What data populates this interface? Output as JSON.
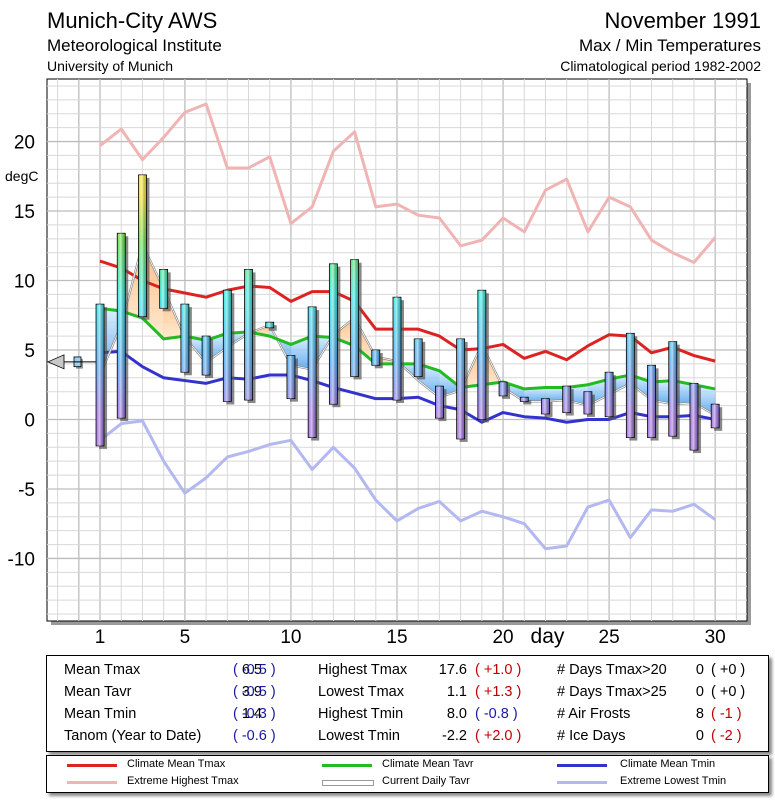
{
  "header": {
    "station": "Munich-City AWS",
    "institute": "Meteorological Institute",
    "university": "University of Munich",
    "month": "November 1991",
    "subtitle": "Max / Min Temperatures",
    "period": "Climatological period 1982-2002"
  },
  "chart_data": {
    "type": "line",
    "ylabel": "degC",
    "xlabel": "day",
    "ylim": [
      -14.5,
      24.5
    ],
    "xlim": [
      -1.5,
      31.5
    ],
    "y_ticks": [
      20,
      15,
      10,
      5,
      0,
      -5,
      -10
    ],
    "x_ticks": [
      1,
      5,
      10,
      15,
      20,
      25,
      30
    ],
    "x": [
      1,
      2,
      3,
      4,
      5,
      6,
      7,
      8,
      9,
      10,
      11,
      12,
      13,
      14,
      15,
      16,
      17,
      18,
      19,
      20,
      21,
      22,
      23,
      24,
      25,
      26,
      27,
      28,
      29,
      30
    ],
    "series": [
      {
        "name": "Climate Mean Tmax",
        "color": "#dd2222",
        "values": [
          11.4,
          10.9,
          10.0,
          9.4,
          9.1,
          8.8,
          9.3,
          9.6,
          9.5,
          8.5,
          9.2,
          9.2,
          8.5,
          6.5,
          6.5,
          6.5,
          6.0,
          5.0,
          5.1,
          5.4,
          4.4,
          4.9,
          4.3,
          5.3,
          6.1,
          6.0,
          4.8,
          5.2,
          4.6,
          4.2
        ]
      },
      {
        "name": "Climate Mean Tavr",
        "color": "#22bb22",
        "values": [
          8.0,
          7.8,
          7.3,
          5.8,
          6.0,
          5.7,
          6.2,
          6.3,
          6.0,
          5.4,
          6.0,
          5.9,
          5.3,
          4.0,
          4.0,
          4.0,
          3.5,
          2.3,
          2.5,
          2.7,
          2.2,
          2.3,
          2.3,
          2.5,
          2.9,
          3.2,
          2.7,
          2.8,
          2.5,
          2.2
        ]
      },
      {
        "name": "Climate Mean Tmin",
        "color": "#3333cc",
        "values": [
          4.8,
          4.9,
          3.8,
          3.0,
          2.8,
          2.6,
          3.0,
          2.9,
          3.2,
          3.2,
          2.8,
          2.3,
          1.9,
          1.5,
          1.5,
          1.6,
          1.0,
          0.7,
          -0.2,
          0.5,
          0.2,
          0.1,
          -0.2,
          0.0,
          0.0,
          0.5,
          0.2,
          0.2,
          0.3,
          0.0
        ]
      },
      {
        "name": "Extreme Highest Tmax",
        "color": "#f0b4b4",
        "values": [
          19.7,
          20.9,
          18.7,
          20.3,
          22.1,
          22.7,
          18.1,
          18.1,
          18.9,
          14.1,
          15.3,
          19.3,
          20.7,
          15.3,
          15.5,
          14.7,
          14.5,
          12.5,
          12.9,
          14.5,
          13.5,
          16.5,
          17.3,
          13.5,
          16.0,
          15.3,
          12.9,
          12.0,
          11.3,
          13.1
        ]
      },
      {
        "name": "Extreme Lowest Tmin",
        "color": "#b4b8f0",
        "values": [
          -1.5,
          -0.3,
          -0.1,
          -3.0,
          -5.3,
          -4.2,
          -2.7,
          -2.3,
          -1.8,
          -1.5,
          -3.6,
          -2.0,
          -3.5,
          -5.8,
          -7.3,
          -6.4,
          -5.9,
          -7.3,
          -6.6,
          -7.0,
          -7.5,
          -9.3,
          -9.1,
          -6.3,
          -5.8,
          -8.5,
          -6.5,
          -6.6,
          -6.1,
          -7.2
        ]
      },
      {
        "name": "Current Daily Tavr",
        "color": "#999999",
        "values": [
          3.2,
          6.8,
          12.6,
          9.4,
          5.9,
          4.1,
          5.2,
          6.2,
          6.8,
          3.9,
          3.6,
          6.1,
          7.3,
          4.5,
          4.2,
          2.8,
          1.6,
          2.1,
          5.4,
          2.3,
          1.3,
          1.3,
          1.4,
          1.0,
          1.8,
          2.6,
          1.4,
          1.1,
          1.2,
          0.3
        ]
      }
    ],
    "daily_tmax": [
      8.3,
      13.4,
      17.6,
      10.8,
      8.3,
      6.0,
      9.3,
      10.8,
      7.0,
      4.6,
      8.1,
      11.2,
      11.5,
      5.0,
      8.8,
      5.8,
      2.4,
      5.8,
      9.3,
      2.7,
      1.6,
      1.5,
      2.4,
      2.0,
      3.4,
      6.2,
      3.9,
      5.6,
      2.6,
      1.1
    ],
    "daily_tmin": [
      -1.9,
      0.1,
      7.4,
      8.0,
      3.4,
      3.2,
      1.3,
      1.4,
      6.6,
      1.5,
      -1.3,
      1.1,
      3.1,
      3.9,
      1.4,
      3.1,
      0.1,
      -1.4,
      0.0,
      1.7,
      1.3,
      0.4,
      0.5,
      0.4,
      0.2,
      -1.3,
      -1.3,
      -1.2,
      -2.2,
      -0.6
    ],
    "climate_period_marker": {
      "tmax": 4.5,
      "tmin": 3.8
    }
  },
  "stats": {
    "row1": {
      "a_label": "Mean Tmax",
      "a_val": "6.5",
      "a_dev": "( -0.5 )",
      "b_label": "Highest Tmax",
      "b_val": "17.6",
      "b_dev": "( +1.0 )",
      "c_label": "# Days Tmax>20",
      "c_val": "0",
      "c_dev": "( +0 )"
    },
    "row2": {
      "a_label": "Mean Tavr",
      "a_val": "3.9",
      "a_dev": "( -0.5 )",
      "b_label": "Lowest Tmax",
      "b_val": "1.1",
      "b_dev": "( +1.3 )",
      "c_label": "# Days Tmax>25",
      "c_val": "0",
      "c_dev": "( +0 )"
    },
    "row3": {
      "a_label": "Mean Tmin",
      "a_val": "1.4",
      "a_dev": "( -0.3 )",
      "b_label": "Highest Tmin",
      "b_val": "8.0",
      "b_dev": "( -0.8 )",
      "c_label": "# Air Frosts",
      "c_val": "8",
      "c_dev": "( -1 )"
    },
    "row4": {
      "a_label": "Tanom (Year to Date)",
      "a_dev": "( -0.6 )",
      "b_label": "Lowest Tmin",
      "b_val": "-2.2",
      "b_dev": "( +2.0 )",
      "c_label": "# Ice Days",
      "c_val": "0",
      "c_dev": "( -2 )"
    }
  },
  "legend": {
    "clim_tmax": "Climate Mean Tmax",
    "clim_tavr": "Climate Mean Tavr",
    "clim_tmin": "Climate Mean Tmin",
    "ext_high": "Extreme Highest Tmax",
    "cur_tavr": "Current Daily Tavr",
    "ext_low": "Extreme Lowest Tmin"
  },
  "colors": {
    "tmax": "#dd2222",
    "tavr": "#22bb22",
    "tmin": "#3333cc",
    "ext_high": "#f0b4b4",
    "ext_low": "#b4b8f0",
    "cur": "#999999",
    "dev_neg": "#1a1aa0",
    "dev_pos": "#c00000"
  }
}
